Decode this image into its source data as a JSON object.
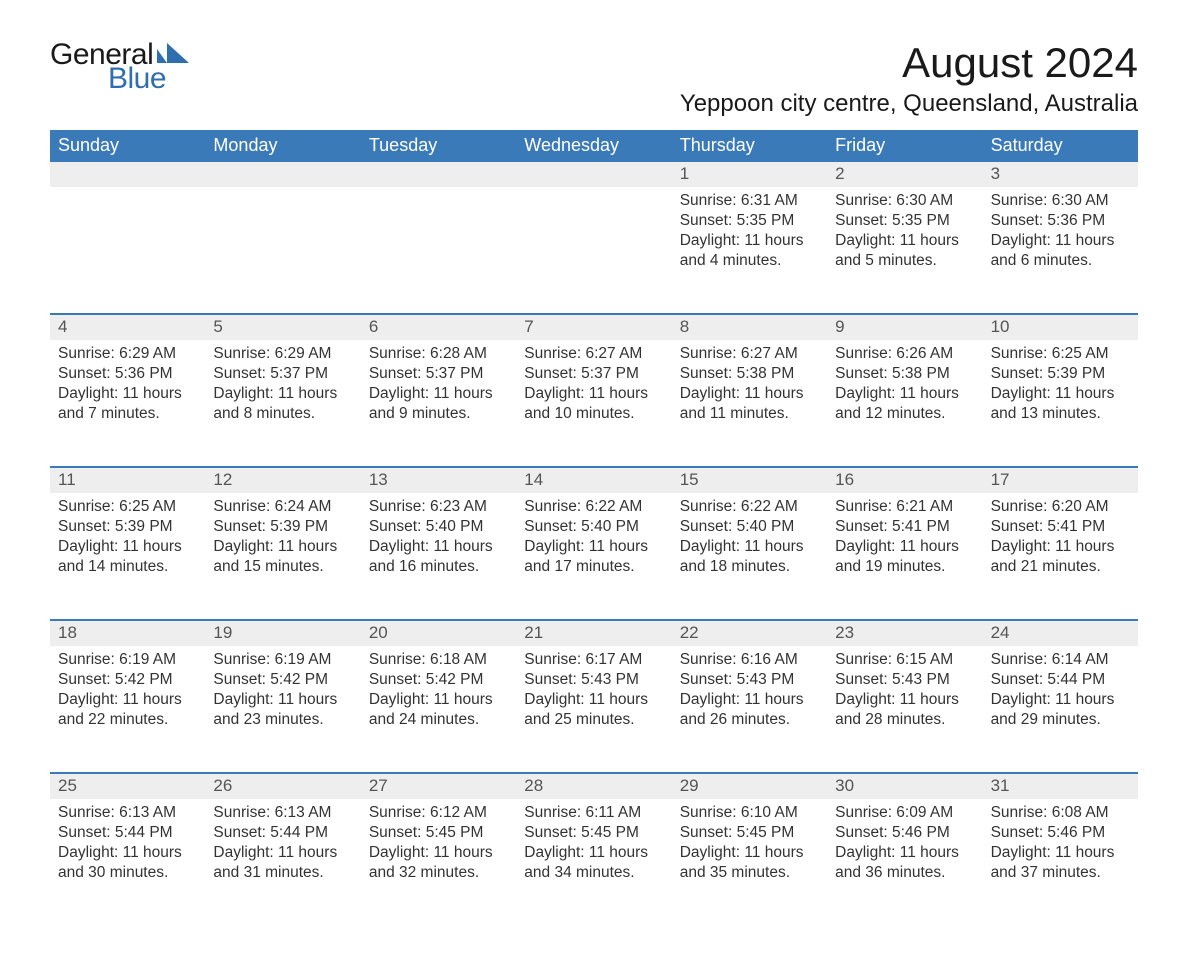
{
  "brand": {
    "text_general": "General",
    "text_blue": "Blue",
    "mark_color": "#2f6fb0"
  },
  "title": "August 2024",
  "location": "Yeppoon city centre, Queensland, Australia",
  "colors": {
    "header_bg": "#3a7ab8",
    "header_text": "#ffffff",
    "daynum_bg": "#eeeeee",
    "daynum_text": "#555555",
    "body_text": "#333333",
    "rule": "#3a7ab8",
    "page_bg": "#ffffff"
  },
  "typography": {
    "title_fontsize": 42,
    "location_fontsize": 24,
    "weekday_fontsize": 18,
    "daynum_fontsize": 17,
    "body_fontsize": 15.5,
    "font_family": "Arial"
  },
  "layout": {
    "columns": 7,
    "rows": 5,
    "week_row_min_height": 126
  },
  "weekdays": [
    "Sunday",
    "Monday",
    "Tuesday",
    "Wednesday",
    "Thursday",
    "Friday",
    "Saturday"
  ],
  "weeks": [
    {
      "days": [
        null,
        null,
        null,
        null,
        {
          "num": "1",
          "sunrise": "Sunrise: 6:31 AM",
          "sunset": "Sunset: 5:35 PM",
          "daylight1": "Daylight: 11 hours",
          "daylight2": "and 4 minutes."
        },
        {
          "num": "2",
          "sunrise": "Sunrise: 6:30 AM",
          "sunset": "Sunset: 5:35 PM",
          "daylight1": "Daylight: 11 hours",
          "daylight2": "and 5 minutes."
        },
        {
          "num": "3",
          "sunrise": "Sunrise: 6:30 AM",
          "sunset": "Sunset: 5:36 PM",
          "daylight1": "Daylight: 11 hours",
          "daylight2": "and 6 minutes."
        }
      ]
    },
    {
      "days": [
        {
          "num": "4",
          "sunrise": "Sunrise: 6:29 AM",
          "sunset": "Sunset: 5:36 PM",
          "daylight1": "Daylight: 11 hours",
          "daylight2": "and 7 minutes."
        },
        {
          "num": "5",
          "sunrise": "Sunrise: 6:29 AM",
          "sunset": "Sunset: 5:37 PM",
          "daylight1": "Daylight: 11 hours",
          "daylight2": "and 8 minutes."
        },
        {
          "num": "6",
          "sunrise": "Sunrise: 6:28 AM",
          "sunset": "Sunset: 5:37 PM",
          "daylight1": "Daylight: 11 hours",
          "daylight2": "and 9 minutes."
        },
        {
          "num": "7",
          "sunrise": "Sunrise: 6:27 AM",
          "sunset": "Sunset: 5:37 PM",
          "daylight1": "Daylight: 11 hours",
          "daylight2": "and 10 minutes."
        },
        {
          "num": "8",
          "sunrise": "Sunrise: 6:27 AM",
          "sunset": "Sunset: 5:38 PM",
          "daylight1": "Daylight: 11 hours",
          "daylight2": "and 11 minutes."
        },
        {
          "num": "9",
          "sunrise": "Sunrise: 6:26 AM",
          "sunset": "Sunset: 5:38 PM",
          "daylight1": "Daylight: 11 hours",
          "daylight2": "and 12 minutes."
        },
        {
          "num": "10",
          "sunrise": "Sunrise: 6:25 AM",
          "sunset": "Sunset: 5:39 PM",
          "daylight1": "Daylight: 11 hours",
          "daylight2": "and 13 minutes."
        }
      ]
    },
    {
      "days": [
        {
          "num": "11",
          "sunrise": "Sunrise: 6:25 AM",
          "sunset": "Sunset: 5:39 PM",
          "daylight1": "Daylight: 11 hours",
          "daylight2": "and 14 minutes."
        },
        {
          "num": "12",
          "sunrise": "Sunrise: 6:24 AM",
          "sunset": "Sunset: 5:39 PM",
          "daylight1": "Daylight: 11 hours",
          "daylight2": "and 15 minutes."
        },
        {
          "num": "13",
          "sunrise": "Sunrise: 6:23 AM",
          "sunset": "Sunset: 5:40 PM",
          "daylight1": "Daylight: 11 hours",
          "daylight2": "and 16 minutes."
        },
        {
          "num": "14",
          "sunrise": "Sunrise: 6:22 AM",
          "sunset": "Sunset: 5:40 PM",
          "daylight1": "Daylight: 11 hours",
          "daylight2": "and 17 minutes."
        },
        {
          "num": "15",
          "sunrise": "Sunrise: 6:22 AM",
          "sunset": "Sunset: 5:40 PM",
          "daylight1": "Daylight: 11 hours",
          "daylight2": "and 18 minutes."
        },
        {
          "num": "16",
          "sunrise": "Sunrise: 6:21 AM",
          "sunset": "Sunset: 5:41 PM",
          "daylight1": "Daylight: 11 hours",
          "daylight2": "and 19 minutes."
        },
        {
          "num": "17",
          "sunrise": "Sunrise: 6:20 AM",
          "sunset": "Sunset: 5:41 PM",
          "daylight1": "Daylight: 11 hours",
          "daylight2": "and 21 minutes."
        }
      ]
    },
    {
      "days": [
        {
          "num": "18",
          "sunrise": "Sunrise: 6:19 AM",
          "sunset": "Sunset: 5:42 PM",
          "daylight1": "Daylight: 11 hours",
          "daylight2": "and 22 minutes."
        },
        {
          "num": "19",
          "sunrise": "Sunrise: 6:19 AM",
          "sunset": "Sunset: 5:42 PM",
          "daylight1": "Daylight: 11 hours",
          "daylight2": "and 23 minutes."
        },
        {
          "num": "20",
          "sunrise": "Sunrise: 6:18 AM",
          "sunset": "Sunset: 5:42 PM",
          "daylight1": "Daylight: 11 hours",
          "daylight2": "and 24 minutes."
        },
        {
          "num": "21",
          "sunrise": "Sunrise: 6:17 AM",
          "sunset": "Sunset: 5:43 PM",
          "daylight1": "Daylight: 11 hours",
          "daylight2": "and 25 minutes."
        },
        {
          "num": "22",
          "sunrise": "Sunrise: 6:16 AM",
          "sunset": "Sunset: 5:43 PM",
          "daylight1": "Daylight: 11 hours",
          "daylight2": "and 26 minutes."
        },
        {
          "num": "23",
          "sunrise": "Sunrise: 6:15 AM",
          "sunset": "Sunset: 5:43 PM",
          "daylight1": "Daylight: 11 hours",
          "daylight2": "and 28 minutes."
        },
        {
          "num": "24",
          "sunrise": "Sunrise: 6:14 AM",
          "sunset": "Sunset: 5:44 PM",
          "daylight1": "Daylight: 11 hours",
          "daylight2": "and 29 minutes."
        }
      ]
    },
    {
      "days": [
        {
          "num": "25",
          "sunrise": "Sunrise: 6:13 AM",
          "sunset": "Sunset: 5:44 PM",
          "daylight1": "Daylight: 11 hours",
          "daylight2": "and 30 minutes."
        },
        {
          "num": "26",
          "sunrise": "Sunrise: 6:13 AM",
          "sunset": "Sunset: 5:44 PM",
          "daylight1": "Daylight: 11 hours",
          "daylight2": "and 31 minutes."
        },
        {
          "num": "27",
          "sunrise": "Sunrise: 6:12 AM",
          "sunset": "Sunset: 5:45 PM",
          "daylight1": "Daylight: 11 hours",
          "daylight2": "and 32 minutes."
        },
        {
          "num": "28",
          "sunrise": "Sunrise: 6:11 AM",
          "sunset": "Sunset: 5:45 PM",
          "daylight1": "Daylight: 11 hours",
          "daylight2": "and 34 minutes."
        },
        {
          "num": "29",
          "sunrise": "Sunrise: 6:10 AM",
          "sunset": "Sunset: 5:45 PM",
          "daylight1": "Daylight: 11 hours",
          "daylight2": "and 35 minutes."
        },
        {
          "num": "30",
          "sunrise": "Sunrise: 6:09 AM",
          "sunset": "Sunset: 5:46 PM",
          "daylight1": "Daylight: 11 hours",
          "daylight2": "and 36 minutes."
        },
        {
          "num": "31",
          "sunrise": "Sunrise: 6:08 AM",
          "sunset": "Sunset: 5:46 PM",
          "daylight1": "Daylight: 11 hours",
          "daylight2": "and 37 minutes."
        }
      ]
    }
  ]
}
